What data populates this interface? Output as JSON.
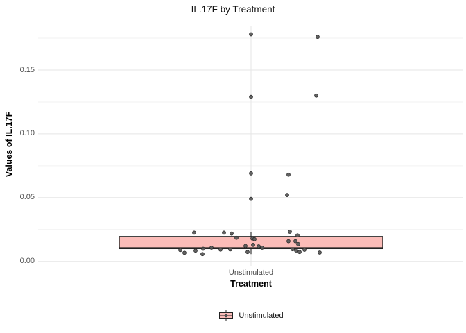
{
  "chart_data": {
    "type": "boxplot",
    "title": "IL.17F by Treatment",
    "xlabel": "Treatment",
    "ylabel": "Values of IL.17F",
    "categories": [
      "Unstimulated"
    ],
    "y_tick_labels": [
      "0.00",
      "0.05",
      "0.10",
      "0.15"
    ],
    "y_tick_values": [
      0.0,
      0.05,
      0.1,
      0.15
    ],
    "y_minor_ticks": [
      0.025,
      0.075,
      0.125,
      0.175
    ],
    "ylim": [
      -0.004,
      0.185
    ],
    "grid": "horizontal major+minor, one vertical major at category center",
    "legend": {
      "position": "bottom",
      "entries": [
        {
          "label": "Unstimulated",
          "fill": "#FBBCB8"
        }
      ]
    },
    "box": {
      "category": "Unstimulated",
      "q1": 0.01,
      "median": 0.0105,
      "q3": 0.0195,
      "whisker_low": 0.0057,
      "whisker_high": 0.0232
    },
    "points_format": "[x_jitter_px_offset_from_center, value]",
    "points": [
      [
        -82,
        0.0225
      ],
      [
        -39,
        0.0225
      ],
      [
        -28,
        0.0218
      ],
      [
        -21,
        0.0185
      ],
      [
        56,
        0.0232
      ],
      [
        67,
        0.0204
      ],
      [
        2,
        0.0179
      ],
      [
        5,
        0.0174
      ],
      [
        54,
        0.0158
      ],
      [
        64,
        0.0158
      ],
      [
        68,
        0.0136
      ],
      [
        -8,
        0.0121
      ],
      [
        3,
        0.013
      ],
      [
        11,
        0.0118
      ],
      [
        16,
        0.0107
      ],
      [
        -57,
        0.0107
      ],
      [
        -69,
        0.0099
      ],
      [
        -102,
        0.0089
      ],
      [
        -96,
        0.0067
      ],
      [
        -80,
        0.0084
      ],
      [
        -70,
        0.0057
      ],
      [
        -44,
        0.0092
      ],
      [
        -30,
        0.0094
      ],
      [
        -5,
        0.0073
      ],
      [
        60,
        0.0095
      ],
      [
        65,
        0.0085
      ],
      [
        70,
        0.0073
      ],
      [
        77,
        0.0091
      ],
      [
        99,
        0.0069
      ],
      [
        0,
        0.178
      ],
      [
        96,
        0.176
      ],
      [
        0,
        0.129
      ],
      [
        94,
        0.13
      ],
      [
        0,
        0.069
      ],
      [
        54,
        0.068
      ],
      [
        52,
        0.052
      ],
      [
        0,
        0.049
      ]
    ],
    "colors": {
      "box_fill": "#FBBCB8",
      "box_stroke": "#222222",
      "point_fill": "#5A5A5A",
      "point_stroke": "#262626",
      "grid_major": "#E5E5E5",
      "grid_minor": "#F2F2F2",
      "tick_label": "#4D4D4D",
      "title": "#111111"
    }
  }
}
